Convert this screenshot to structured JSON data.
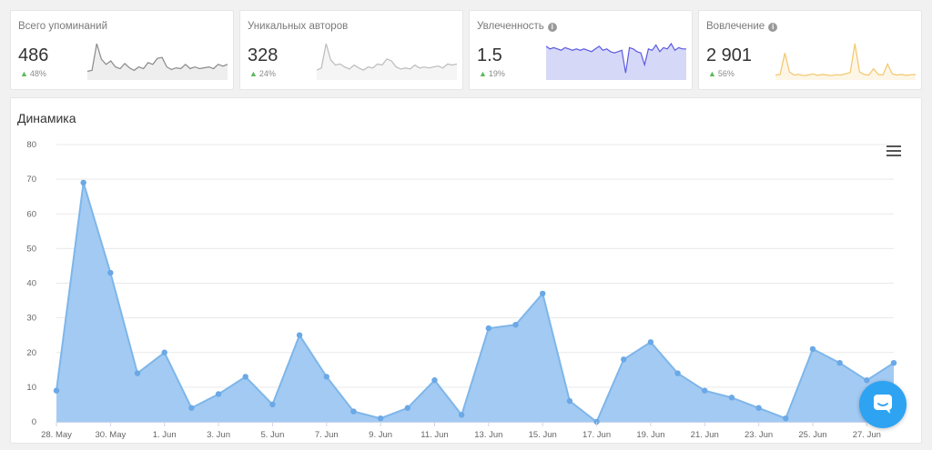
{
  "kpis": [
    {
      "title": "Всего упоминаний",
      "value": "486",
      "delta": "48%",
      "info": false,
      "spark_color": "#8a8a8a",
      "spark_fill": "#eeeeee",
      "spark": [
        8,
        9,
        40,
        22,
        16,
        20,
        13,
        11,
        17,
        12,
        9,
        13,
        11,
        18,
        16,
        23,
        24,
        13,
        10,
        12,
        11,
        16,
        11,
        13,
        11,
        12,
        13,
        11,
        16,
        14,
        16
      ]
    },
    {
      "title": "Уникальных авторов",
      "value": "328",
      "delta": "24%",
      "info": false,
      "spark_color": "#bbbbbb",
      "spark_fill": "#f5f5f5",
      "spark": [
        8,
        10,
        34,
        18,
        13,
        14,
        11,
        9,
        13,
        10,
        8,
        11,
        10,
        14,
        13,
        19,
        17,
        11,
        9,
        10,
        9,
        13,
        10,
        11,
        10,
        11,
        12,
        10,
        14,
        13,
        14
      ]
    },
    {
      "title": "Увлеченность",
      "value": "1.5",
      "delta": "19%",
      "info": true,
      "spark_color": "#5b5be0",
      "spark_fill": "#d6d8f8",
      "spark": [
        2.4,
        2.2,
        2.3,
        2.2,
        2.1,
        2.3,
        2.2,
        2.1,
        2.2,
        2.1,
        2.2,
        2.1,
        2.0,
        2.2,
        2.4,
        2.1,
        2.2,
        2.0,
        1.9,
        2.0,
        2.1,
        0.4,
        2.3,
        2.2,
        2.0,
        1.9,
        1.0,
        2.2,
        2.1,
        2.5,
        2.0,
        2.3,
        2.2,
        2.6,
        2.1,
        2.3,
        2.2,
        2.2
      ]
    },
    {
      "title": "Вовлечение",
      "value": "2 901",
      "delta": "56%",
      "info": true,
      "spark_color": "#f2c66a",
      "spark_fill": "#fdf6e6",
      "spark": [
        10,
        12,
        80,
        20,
        10,
        12,
        8,
        10,
        14,
        9,
        12,
        10,
        8,
        11,
        10,
        14,
        18,
        110,
        20,
        12,
        10,
        30,
        12,
        10,
        45,
        14,
        10,
        12,
        9,
        11,
        12
      ]
    }
  ],
  "chart": {
    "title": "Динамика",
    "menu_icon": "hamburger-menu-icon",
    "accent": "#7eb6ea",
    "fill": "#9ec7f1",
    "point": "#6aa8e6",
    "grid": "#e9e9e9"
  },
  "chart_data": {
    "type": "area",
    "title": "Динамика",
    "x": [
      "28. May",
      "29. May",
      "30. May",
      "31. May",
      "1. Jun",
      "2. Jun",
      "3. Jun",
      "4. Jun",
      "5. Jun",
      "6. Jun",
      "7. Jun",
      "8. Jun",
      "9. Jun",
      "10. Jun",
      "11. Jun",
      "12. Jun",
      "13. Jun",
      "14. Jun",
      "15. Jun",
      "16. Jun",
      "17. Jun",
      "18. Jun",
      "19. Jun",
      "20. Jun",
      "21. Jun",
      "22. Jun",
      "23. Jun",
      "24. Jun",
      "25. Jun",
      "26. Jun",
      "27. Jun",
      "28. Jun"
    ],
    "tick_labels": [
      "28. May",
      "30. May",
      "1. Jun",
      "3. Jun",
      "5. Jun",
      "7. Jun",
      "9. Jun",
      "11. Jun",
      "13. Jun",
      "15. Jun",
      "17. Jun",
      "19. Jun",
      "21. Jun",
      "23. Jun",
      "25. Jun",
      "27. Jun"
    ],
    "values": [
      9,
      69,
      43,
      14,
      20,
      4,
      8,
      13,
      5,
      25,
      13,
      3,
      1,
      4,
      12,
      2,
      27,
      28,
      37,
      6,
      0,
      18,
      23,
      14,
      9,
      7,
      4,
      1,
      21,
      17,
      12,
      17
    ],
    "ylim": [
      0,
      80
    ],
    "yticks": [
      0,
      10,
      20,
      30,
      40,
      50,
      60,
      70,
      80
    ],
    "grid": true,
    "legend": false
  },
  "chat": {
    "icon": "chat-icon",
    "color": "#2ea3f2"
  }
}
